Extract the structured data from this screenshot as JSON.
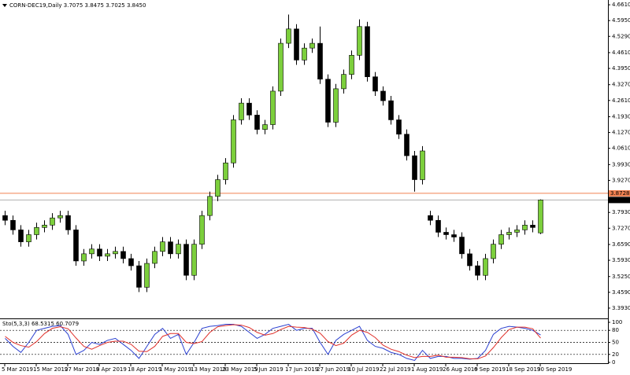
{
  "chart_data": {
    "type": "candlestick",
    "title": "CORN-DEC19,Daily  3.7075 3.8475 3.7025 3.8450",
    "categories": [
      "5 Mar 2019",
      null,
      null,
      null,
      "15 Mar 2019",
      null,
      null,
      null,
      "27 Mar 2019",
      null,
      null,
      null,
      "8 Apr 2019",
      null,
      null,
      null,
      "18 Apr 2019",
      null,
      null,
      null,
      "1 May 2019",
      null,
      null,
      null,
      "13 May 2019",
      null,
      null,
      null,
      "23 May 2019",
      null,
      null,
      null,
      "5 Jun 2019",
      null,
      null,
      null,
      "17 Jun 2019",
      null,
      null,
      null,
      "27 Jun 2019",
      null,
      null,
      null,
      "10 Jul 2019",
      null,
      null,
      null,
      "22 Jul 2019",
      null,
      null,
      null,
      "1 Aug 2019",
      null,
      null,
      null,
      "26 Aug 2019",
      null,
      null,
      null,
      "6 Sep 2019",
      null,
      null,
      null,
      "18 Sep 2019",
      null,
      null,
      null,
      "30 Sep 2019"
    ],
    "open": [
      3.78,
      3.76,
      3.72,
      3.67,
      3.7,
      3.73,
      3.74,
      3.77,
      3.78,
      3.72,
      3.59,
      3.62,
      3.64,
      3.61,
      3.62,
      3.63,
      3.6,
      3.57,
      3.48,
      3.58,
      3.63,
      3.67,
      3.62,
      3.66,
      3.53,
      3.66,
      3.78,
      3.86,
      3.93,
      4.0,
      4.18,
      4.25,
      4.2,
      4.14,
      4.16,
      4.3,
      4.5,
      4.56,
      4.43,
      4.48,
      4.5,
      4.35,
      4.17,
      4.31,
      4.37,
      4.45,
      4.57,
      4.36,
      4.3,
      4.26,
      4.18,
      4.12,
      4.03,
      3.93,
      3.78,
      3.76,
      3.71,
      3.7,
      3.69,
      3.62,
      3.57,
      3.53,
      3.6,
      3.66,
      3.7,
      3.71,
      3.72,
      3.74,
      3.7075
    ],
    "high": [
      3.8,
      3.78,
      3.74,
      3.72,
      3.75,
      3.76,
      3.79,
      3.8,
      3.8,
      3.74,
      3.64,
      3.66,
      3.66,
      3.64,
      3.65,
      3.65,
      3.62,
      3.59,
      3.6,
      3.65,
      3.69,
      3.69,
      3.68,
      3.68,
      3.68,
      3.8,
      3.88,
      3.95,
      4.02,
      4.2,
      4.27,
      4.27,
      4.22,
      4.18,
      4.32,
      4.52,
      4.62,
      4.58,
      4.5,
      4.52,
      4.57,
      4.37,
      4.33,
      4.39,
      4.47,
      4.6,
      4.59,
      4.38,
      4.32,
      4.28,
      4.2,
      4.14,
      4.05,
      4.07,
      3.8,
      3.78,
      3.73,
      3.72,
      3.71,
      3.64,
      3.59,
      3.62,
      3.68,
      3.72,
      3.73,
      3.74,
      3.76,
      3.76,
      3.8475
    ],
    "low": [
      3.74,
      3.7,
      3.65,
      3.65,
      3.68,
      3.71,
      3.72,
      3.75,
      3.7,
      3.57,
      3.57,
      3.6,
      3.59,
      3.59,
      3.6,
      3.58,
      3.55,
      3.46,
      3.46,
      3.56,
      3.61,
      3.6,
      3.6,
      3.51,
      3.51,
      3.64,
      3.76,
      3.84,
      3.91,
      3.98,
      4.16,
      4.18,
      4.12,
      4.12,
      4.14,
      4.28,
      4.48,
      4.41,
      4.41,
      4.46,
      4.33,
      4.15,
      4.15,
      4.29,
      4.35,
      4.43,
      4.34,
      4.28,
      4.24,
      4.16,
      4.1,
      4.01,
      3.88,
      3.91,
      3.74,
      3.69,
      3.68,
      3.67,
      3.6,
      3.55,
      3.51,
      3.51,
      3.58,
      3.64,
      3.68,
      3.69,
      3.7,
      3.71,
      3.7025
    ],
    "close": [
      3.76,
      3.72,
      3.67,
      3.7,
      3.73,
      3.74,
      3.77,
      3.78,
      3.72,
      3.59,
      3.62,
      3.64,
      3.61,
      3.62,
      3.63,
      3.6,
      3.57,
      3.48,
      3.58,
      3.63,
      3.67,
      3.62,
      3.66,
      3.53,
      3.66,
      3.78,
      3.86,
      3.93,
      4.0,
      4.18,
      4.25,
      4.2,
      4.14,
      4.16,
      4.3,
      4.5,
      4.56,
      4.43,
      4.48,
      4.5,
      4.35,
      4.17,
      4.31,
      4.37,
      4.45,
      4.57,
      4.36,
      4.3,
      4.26,
      4.18,
      4.12,
      4.03,
      3.93,
      4.05,
      3.76,
      3.71,
      3.7,
      3.69,
      3.62,
      3.57,
      3.53,
      3.6,
      3.66,
      3.7,
      3.71,
      3.72,
      3.74,
      3.73,
      3.845
    ],
    "up_color": "#7ccf3c",
    "down_color": "#000000",
    "ylim": [
      3.35,
      4.681
    ],
    "yticks": [
      {
        "value": 4.661,
        "label": "4.6610"
      },
      {
        "value": 4.595,
        "label": "4.5950"
      },
      {
        "value": 4.529,
        "label": "4.5290"
      },
      {
        "value": 4.461,
        "label": "4.4610"
      },
      {
        "value": 4.395,
        "label": "4.3950"
      },
      {
        "value": 4.327,
        "label": "4.3270"
      },
      {
        "value": 4.261,
        "label": "4.2610"
      },
      {
        "value": 4.193,
        "label": "4.1930"
      },
      {
        "value": 4.127,
        "label": "4.1270"
      },
      {
        "value": 4.061,
        "label": "4.0610"
      },
      {
        "value": 3.993,
        "label": "3.9930"
      },
      {
        "value": 3.927,
        "label": "3.9270"
      },
      {
        "value": 3.793,
        "label": "3.7930"
      },
      {
        "value": 3.727,
        "label": "3.7270"
      },
      {
        "value": 3.659,
        "label": "3.6590"
      },
      {
        "value": 3.593,
        "label": "3.5930"
      },
      {
        "value": 3.525,
        "label": "3.5250"
      },
      {
        "value": 3.459,
        "label": "3.4590"
      },
      {
        "value": 3.393,
        "label": "3.3930"
      }
    ],
    "hline": {
      "value": 3.8728,
      "label": "3.8728",
      "color": "#f08050"
    },
    "price_line": {
      "value": 3.845,
      "label": "3.8450"
    },
    "indicator": {
      "title": "Sto(5,3,3) 68.5315 60.7079",
      "ylim": [
        0,
        100
      ],
      "yticks": [
        100,
        80,
        50,
        20,
        0
      ],
      "levels": [
        80,
        50,
        20
      ],
      "series": [
        {
          "color": "#2a3fd0",
          "values": [
            60,
            40,
            25,
            50,
            80,
            85,
            90,
            92,
            70,
            20,
            30,
            50,
            45,
            55,
            60,
            45,
            30,
            10,
            40,
            70,
            85,
            60,
            70,
            20,
            50,
            85,
            90,
            92,
            95,
            95,
            90,
            75,
            60,
            70,
            85,
            90,
            95,
            80,
            85,
            85,
            50,
            20,
            55,
            70,
            80,
            90,
            55,
            40,
            35,
            25,
            20,
            10,
            5,
            30,
            10,
            15,
            15,
            10,
            10,
            8,
            10,
            30,
            70,
            85,
            90,
            88,
            85,
            80,
            68.5315
          ]
        },
        {
          "color": "#e0302a",
          "values": [
            65,
            50,
            42,
            38,
            52,
            72,
            85,
            89,
            84,
            61,
            40,
            33,
            42,
            50,
            53,
            53,
            45,
            28,
            27,
            40,
            65,
            72,
            72,
            50,
            47,
            52,
            75,
            89,
            92,
            94,
            93,
            87,
            75,
            68,
            72,
            82,
            90,
            88,
            87,
            83,
            73,
            52,
            42,
            48,
            68,
            80,
            75,
            62,
            43,
            33,
            27,
            18,
            12,
            15,
            15,
            18,
            13,
            13,
            12,
            9,
            9,
            16,
            37,
            62,
            82,
            88,
            88,
            84,
            60.7079
          ]
        }
      ]
    }
  }
}
